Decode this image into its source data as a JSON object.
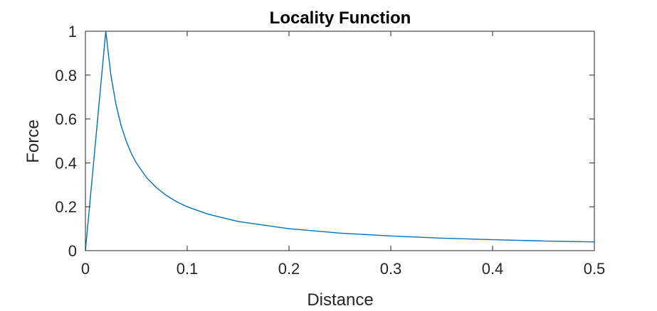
{
  "chart_data": {
    "type": "line",
    "title": "Locality Function",
    "xlabel": "Distance",
    "ylabel": "Force",
    "xlim": [
      0,
      0.5
    ],
    "ylim": [
      0,
      1
    ],
    "xticks": [
      0,
      0.1,
      0.2,
      0.3,
      0.4,
      0.5
    ],
    "xtick_labels": [
      "0",
      "0.1",
      "0.2",
      "0.3",
      "0.4",
      "0.5"
    ],
    "yticks": [
      0,
      0.2,
      0.4,
      0.6,
      0.8,
      1
    ],
    "ytick_labels": [
      "0",
      "0.2",
      "0.4",
      "0.6",
      "0.8",
      "1"
    ],
    "grid": false,
    "box": true,
    "series": [
      {
        "color": "#0072BD",
        "x": [
          0,
          0.02,
          0.025,
          0.03,
          0.035,
          0.04,
          0.045,
          0.05,
          0.06,
          0.07,
          0.08,
          0.09,
          0.1,
          0.12,
          0.15,
          0.2,
          0.25,
          0.3,
          0.35,
          0.4,
          0.45,
          0.5
        ],
        "y": [
          0,
          1,
          0.8,
          0.667,
          0.571,
          0.5,
          0.444,
          0.4,
          0.333,
          0.286,
          0.25,
          0.222,
          0.2,
          0.167,
          0.133,
          0.1,
          0.08,
          0.067,
          0.057,
          0.05,
          0.044,
          0.04
        ]
      }
    ]
  }
}
